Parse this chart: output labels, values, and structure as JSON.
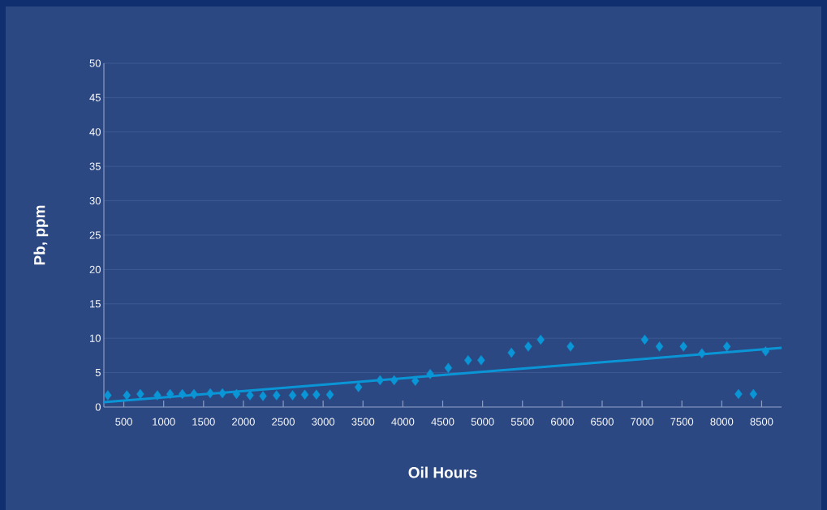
{
  "chart_data": {
    "type": "scatter",
    "xlabel": "Oil Hours",
    "ylabel": "Pb, ppm",
    "xlim": [
      250,
      8750
    ],
    "ylim": [
      0,
      50
    ],
    "xticks": [
      500,
      1000,
      1500,
      2000,
      2500,
      3000,
      3500,
      4000,
      4500,
      5000,
      5500,
      6000,
      6500,
      7000,
      7500,
      8000,
      8500
    ],
    "yticks": [
      0,
      5,
      10,
      15,
      20,
      25,
      30,
      35,
      40,
      45,
      50
    ],
    "grid": "y",
    "marker": "diamond",
    "series": [
      {
        "color": "#0a96d6",
        "x": [
          299,
          538,
          707,
          921,
          1081,
          1234,
          1380,
          1584,
          1737,
          1914,
          2083,
          2246,
          2416,
          2617,
          2770,
          2916,
          3086,
          3443,
          3714,
          3891,
          4156,
          4343,
          4570,
          4819,
          4982,
          5362,
          5573,
          5729,
          6103,
          7034,
          7218,
          7520,
          7751,
          8064,
          8210,
          8397,
          8550
        ],
        "values": [
          1.7,
          1.7,
          1.9,
          1.7,
          1.9,
          1.9,
          1.9,
          2.0,
          2.0,
          1.9,
          1.7,
          1.6,
          1.7,
          1.7,
          1.8,
          1.8,
          1.8,
          2.9,
          3.9,
          3.9,
          3.8,
          4.8,
          5.7,
          6.8,
          6.8,
          7.9,
          8.8,
          9.8,
          8.8,
          9.8,
          8.8,
          8.8,
          7.8,
          8.8,
          1.9,
          1.9,
          8.1
        ]
      },
      {
        "type": "line",
        "color": "#0a96d6",
        "marker": "none",
        "line_style": "solid",
        "x": [
          250,
          8750
        ],
        "values": [
          0.7,
          8.6
        ]
      }
    ]
  }
}
